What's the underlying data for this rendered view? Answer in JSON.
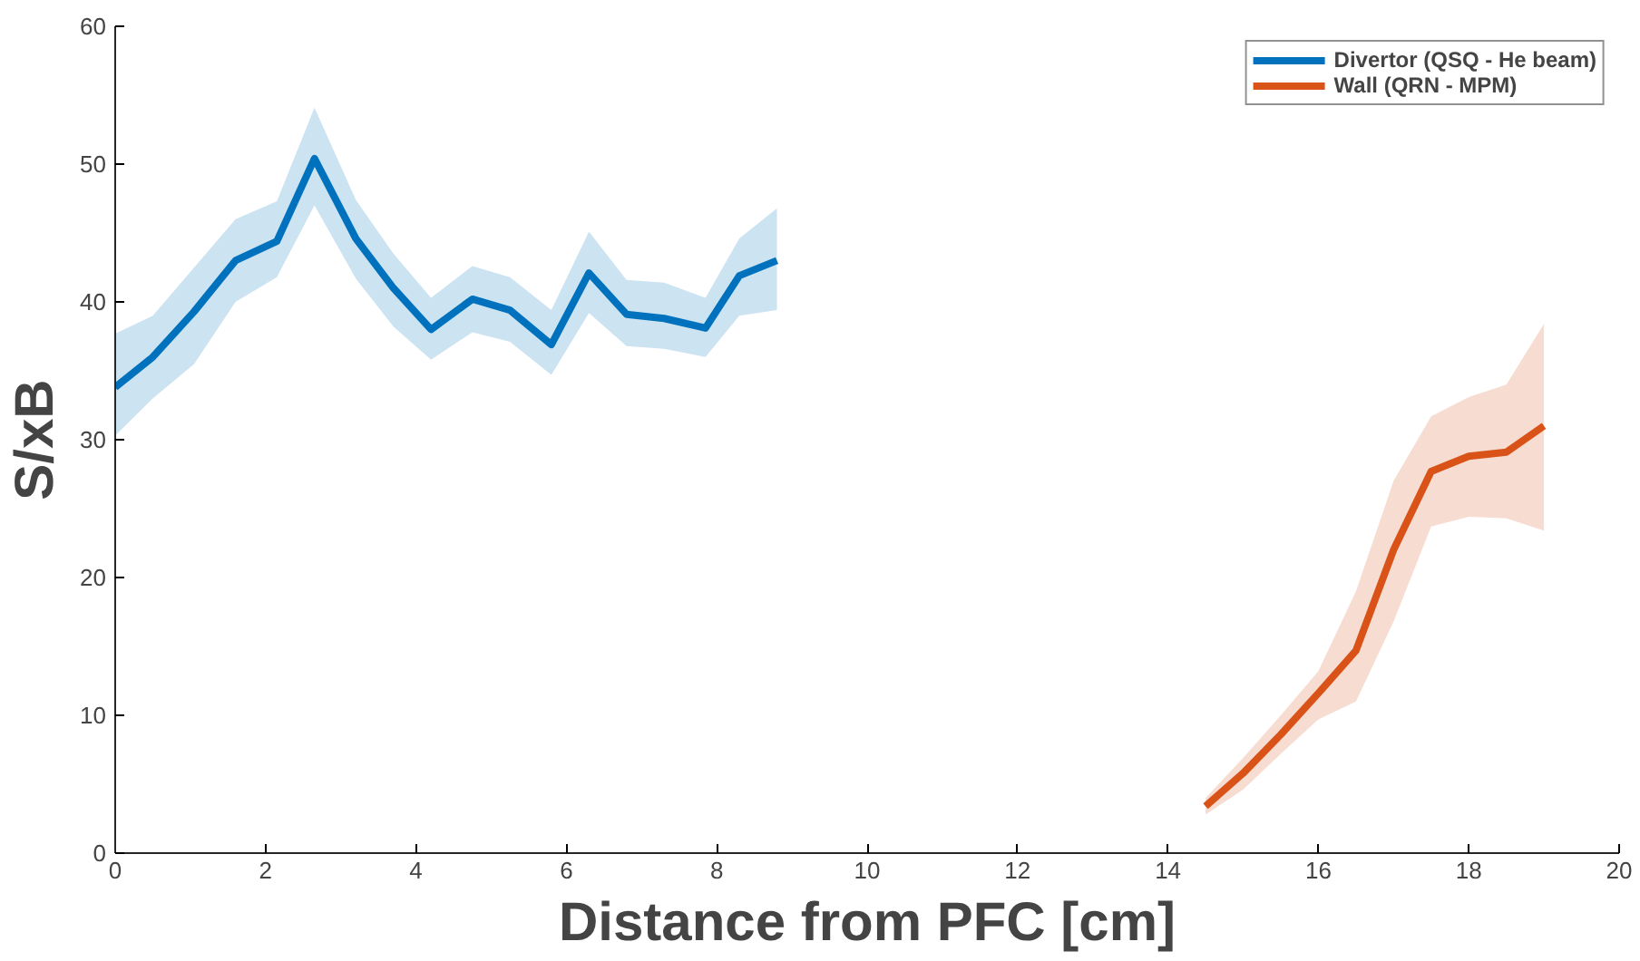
{
  "chart_data": {
    "type": "line",
    "xlabel": "Distance from PFC [cm]",
    "ylabel": "S/xB",
    "xlim": [
      0,
      20
    ],
    "ylim": [
      0,
      60
    ],
    "xticks": [
      0,
      2,
      4,
      6,
      8,
      10,
      12,
      14,
      16,
      18,
      20
    ],
    "yticks": [
      0,
      10,
      20,
      30,
      40,
      50,
      60
    ],
    "grid": false,
    "legend": "top right",
    "marker": "none",
    "line_style": "solid",
    "series": [
      {
        "name": "Divertor (QSQ - He beam)",
        "color": "#0072bd",
        "x": [
          0,
          0.5,
          1.05,
          1.6,
          2.15,
          2.65,
          3.2,
          3.7,
          4.2,
          4.75,
          5.25,
          5.8,
          6.3,
          6.8,
          7.3,
          7.85,
          8.3,
          8.8
        ],
        "values": [
          33.8,
          36,
          39.3,
          43,
          44.4,
          50.4,
          44.6,
          41,
          38,
          40.2,
          39.4,
          36.9,
          42.1,
          39.1,
          38.8,
          38.1,
          41.9,
          43
        ],
        "lower": [
          30.3,
          33,
          35.5,
          40,
          41.8,
          47,
          41.7,
          38.2,
          35.8,
          37.8,
          37.1,
          34.7,
          39.2,
          36.8,
          36.6,
          36,
          39,
          39.4
        ],
        "upper": [
          37.7,
          39,
          42.5,
          46,
          47.3,
          54.1,
          47.4,
          43.5,
          40.3,
          42.6,
          41.8,
          39.4,
          45.1,
          41.6,
          41.4,
          40.3,
          44.6,
          46.8
        ]
      },
      {
        "name": "Wall (QRN - MPM)",
        "color": "#d95319",
        "x": [
          14.5,
          15,
          15.5,
          16,
          16.5,
          17,
          17.5,
          18,
          18.5,
          19
        ],
        "values": [
          3.4,
          5.8,
          8.6,
          11.6,
          14.7,
          22,
          27.7,
          28.8,
          29.1,
          31
        ],
        "lower": [
          2.8,
          4.6,
          7.2,
          9.7,
          11,
          16.8,
          23.7,
          24.4,
          24.3,
          23.4
        ],
        "upper": [
          4,
          6.9,
          10,
          13.2,
          19,
          27,
          31.7,
          33.1,
          34,
          38.4
        ]
      }
    ]
  }
}
